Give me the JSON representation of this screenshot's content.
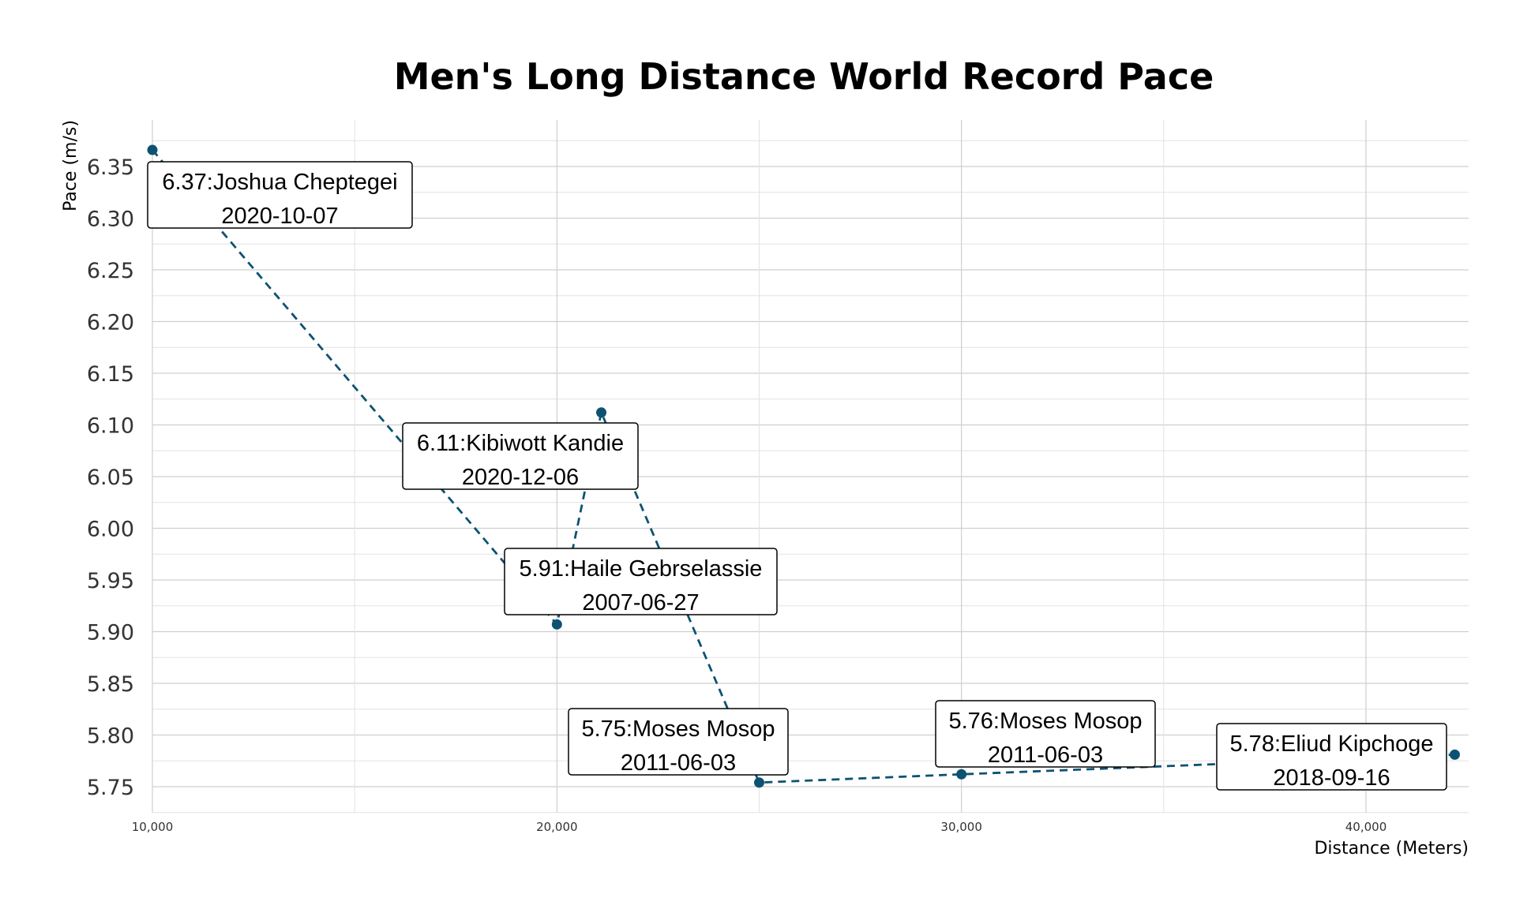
{
  "chart_data": {
    "type": "line",
    "title": "Men's Long Distance World Record Pace",
    "xlabel": "Distance (Meters)",
    "ylabel": "Pace (m/s)",
    "xlim": [
      10000,
      42500
    ],
    "ylim": [
      5.73,
      6.4
    ],
    "x_ticks": [
      10000,
      20000,
      30000,
      40000
    ],
    "x_tick_labels": [
      "10,000",
      "20,000",
      "30,000",
      "40,000"
    ],
    "y_ticks": [
      5.75,
      5.8,
      5.85,
      5.9,
      5.95,
      6.0,
      6.05,
      6.1,
      6.15,
      6.2,
      6.25,
      6.3,
      6.35
    ],
    "y_tick_labels": [
      "5.75",
      "5.80",
      "5.85",
      "5.90",
      "5.95",
      "6.00",
      "6.05",
      "6.10",
      "6.15",
      "6.20",
      "6.25",
      "6.30",
      "6.35"
    ],
    "grid": true,
    "line_style": "dashed",
    "color": "#0d5273",
    "points": [
      {
        "x": 10000,
        "y": 6.366,
        "pace": "6.37",
        "athlete": "Joshua Cheptegei",
        "date": "2020-10-07"
      },
      {
        "x": 20000,
        "y": 5.907,
        "pace": "5.91",
        "athlete": "Haile Gebrselassie",
        "date": "2007-06-27"
      },
      {
        "x": 21097,
        "y": 6.112,
        "pace": "6.11",
        "athlete": "Kibiwott Kandie",
        "date": "2020-12-06"
      },
      {
        "x": 25000,
        "y": 5.754,
        "pace": "5.75",
        "athlete": "Moses Mosop",
        "date": "2011-06-03"
      },
      {
        "x": 30000,
        "y": 5.762,
        "pace": "5.76",
        "athlete": "Moses Mosop",
        "date": "2011-06-03"
      },
      {
        "x": 42195,
        "y": 5.781,
        "pace": "5.78",
        "athlete": "Eliud Kipchoge",
        "date": "2018-09-16"
      }
    ]
  }
}
